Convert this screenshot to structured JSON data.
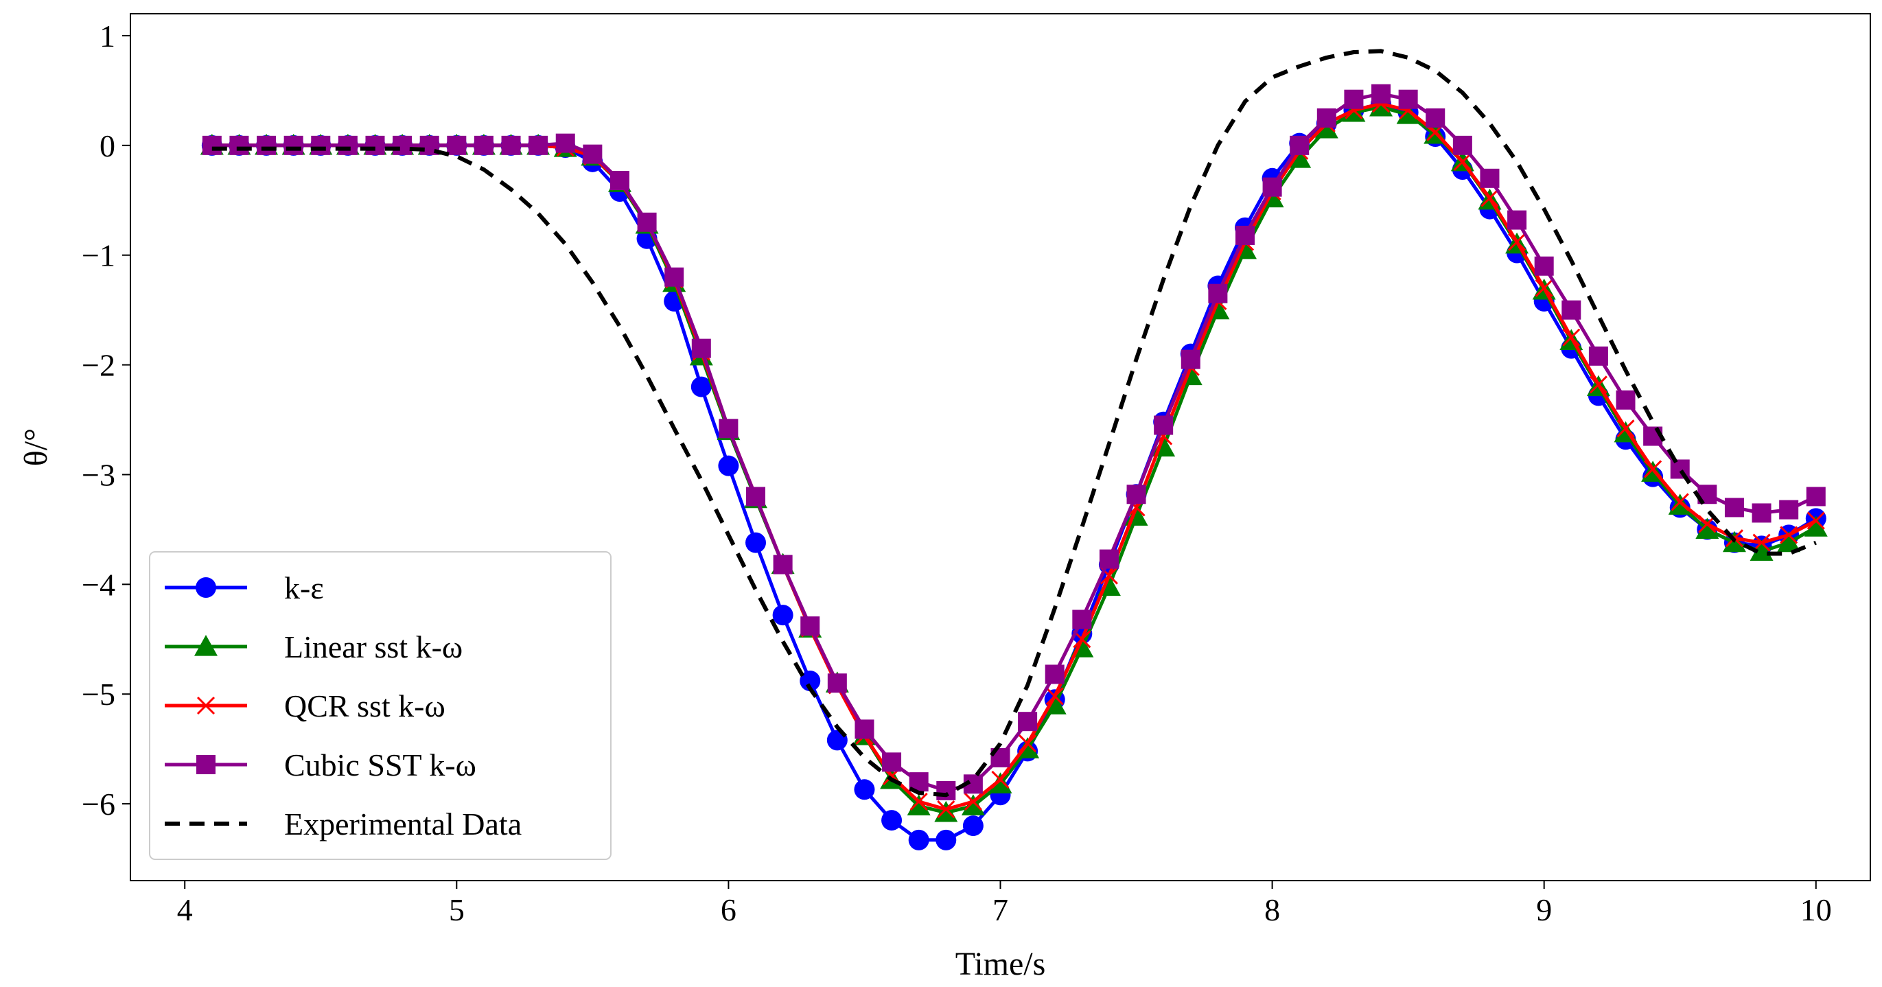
{
  "chart_data": {
    "type": "line",
    "title": "",
    "xlabel": "Time/s",
    "ylabel": "θ/°",
    "xlim": [
      3.8,
      10.2
    ],
    "ylim": [
      -6.7,
      1.2
    ],
    "xticks": [
      4,
      5,
      6,
      7,
      8,
      9,
      10
    ],
    "xtick_labels": [
      "4",
      "5",
      "6",
      "7",
      "8",
      "9",
      "10"
    ],
    "yticks": [
      1,
      0,
      -1,
      -2,
      -3,
      -4,
      -5,
      -6
    ],
    "ytick_labels": [
      "1",
      "0",
      "−1",
      "−2",
      "−3",
      "−4",
      "−5",
      "−6"
    ],
    "grid": false,
    "legend_position": "lower-left",
    "x": [
      4.1,
      4.2,
      4.3,
      4.4,
      4.5,
      4.6,
      4.7,
      4.8,
      4.9,
      5.0,
      5.1,
      5.2,
      5.3,
      5.4,
      5.5,
      5.6,
      5.7,
      5.8,
      5.9,
      6.0,
      6.1,
      6.2,
      6.3,
      6.4,
      6.5,
      6.6,
      6.7,
      6.8,
      6.9,
      7.0,
      7.1,
      7.2,
      7.3,
      7.4,
      7.5,
      7.6,
      7.7,
      7.8,
      7.9,
      8.0,
      8.1,
      8.2,
      8.3,
      8.4,
      8.5,
      8.6,
      8.7,
      8.8,
      8.9,
      9.0,
      9.1,
      9.2,
      9.3,
      9.4,
      9.5,
      9.6,
      9.7,
      9.8,
      9.9,
      10.0
    ],
    "series": [
      {
        "name": "k-ε",
        "color": "#0000ff",
        "marker": "circle",
        "dash": "solid",
        "values": [
          0,
          0,
          0,
          0,
          0,
          0,
          0,
          0,
          0,
          0,
          0,
          0,
          0,
          -0.02,
          -0.15,
          -0.42,
          -0.85,
          -1.42,
          -2.2,
          -2.92,
          -3.62,
          -4.28,
          -4.88,
          -5.42,
          -5.87,
          -6.15,
          -6.33,
          -6.33,
          -6.2,
          -5.92,
          -5.52,
          -5.05,
          -4.45,
          -3.82,
          -3.18,
          -2.52,
          -1.9,
          -1.28,
          -0.75,
          -0.3,
          0.02,
          0.2,
          0.32,
          0.38,
          0.3,
          0.08,
          -0.22,
          -0.58,
          -0.98,
          -1.42,
          -1.85,
          -2.28,
          -2.68,
          -3.02,
          -3.3,
          -3.5,
          -3.62,
          -3.65,
          -3.55,
          -3.4
        ]
      },
      {
        "name": "Linear sst k-ω",
        "color": "#008000",
        "marker": "triangle",
        "dash": "solid",
        "values": [
          0,
          0,
          0,
          0,
          0,
          0,
          0,
          0,
          0,
          0,
          0,
          0,
          0,
          -0.02,
          -0.1,
          -0.34,
          -0.72,
          -1.25,
          -1.92,
          -2.6,
          -3.22,
          -3.82,
          -4.4,
          -4.9,
          -5.38,
          -5.78,
          -6.02,
          -6.08,
          -6.02,
          -5.82,
          -5.5,
          -5.1,
          -4.58,
          -4.02,
          -3.38,
          -2.75,
          -2.1,
          -1.5,
          -0.95,
          -0.48,
          -0.12,
          0.15,
          0.3,
          0.35,
          0.28,
          0.1,
          -0.15,
          -0.5,
          -0.9,
          -1.32,
          -1.78,
          -2.2,
          -2.62,
          -2.98,
          -3.28,
          -3.5,
          -3.62,
          -3.7,
          -3.62,
          -3.48
        ]
      },
      {
        "name": "QCR sst k-ω",
        "color": "#ff0000",
        "marker": "x",
        "dash": "solid",
        "values": [
          0,
          0,
          0,
          0,
          0,
          0,
          0,
          0,
          0,
          0,
          0,
          0,
          0,
          -0.02,
          -0.1,
          -0.33,
          -0.7,
          -1.22,
          -1.88,
          -2.58,
          -3.2,
          -3.82,
          -4.4,
          -4.92,
          -5.38,
          -5.75,
          -5.98,
          -6.05,
          -5.98,
          -5.78,
          -5.45,
          -5.02,
          -4.5,
          -3.92,
          -3.3,
          -2.65,
          -2.02,
          -1.42,
          -0.88,
          -0.42,
          -0.05,
          0.2,
          0.32,
          0.38,
          0.32,
          0.12,
          -0.15,
          -0.48,
          -0.88,
          -1.3,
          -1.75,
          -2.18,
          -2.58,
          -2.95,
          -3.25,
          -3.45,
          -3.58,
          -3.62,
          -3.55,
          -3.42
        ]
      },
      {
        "name": "Cubic SST k-ω",
        "color": "#8b008b",
        "marker": "square",
        "dash": "solid",
        "values": [
          0,
          0,
          0,
          0,
          0,
          0,
          0,
          0,
          0,
          0,
          0,
          0,
          0,
          0.02,
          -0.08,
          -0.32,
          -0.7,
          -1.2,
          -1.85,
          -2.58,
          -3.2,
          -3.82,
          -4.38,
          -4.9,
          -5.32,
          -5.62,
          -5.8,
          -5.88,
          -5.82,
          -5.58,
          -5.25,
          -4.82,
          -4.32,
          -3.77,
          -3.18,
          -2.55,
          -1.95,
          -1.35,
          -0.82,
          -0.38,
          0.0,
          0.25,
          0.42,
          0.47,
          0.42,
          0.25,
          0.0,
          -0.3,
          -0.68,
          -1.1,
          -1.5,
          -1.92,
          -2.32,
          -2.65,
          -2.95,
          -3.18,
          -3.3,
          -3.35,
          -3.32,
          -3.2
        ]
      },
      {
        "name": "Experimental Data",
        "color": "#000000",
        "marker": "none",
        "dash": "dashed",
        "x": [
          4.1,
          4.3,
          4.5,
          4.7,
          4.8,
          4.9,
          5.0,
          5.1,
          5.2,
          5.3,
          5.4,
          5.5,
          5.6,
          5.7,
          5.8,
          5.9,
          6.0,
          6.1,
          6.2,
          6.3,
          6.4,
          6.5,
          6.6,
          6.7,
          6.8,
          6.9,
          7.0,
          7.1,
          7.2,
          7.3,
          7.4,
          7.5,
          7.6,
          7.7,
          7.8,
          7.9,
          8.0,
          8.1,
          8.2,
          8.3,
          8.4,
          8.5,
          8.6,
          8.7,
          8.8,
          8.9,
          9.0,
          9.1,
          9.2,
          9.3,
          9.4,
          9.5,
          9.6,
          9.7,
          9.8,
          9.9,
          10.0
        ],
        "values": [
          -0.03,
          -0.03,
          -0.03,
          -0.03,
          -0.03,
          -0.04,
          -0.1,
          -0.22,
          -0.4,
          -0.62,
          -0.9,
          -1.25,
          -1.65,
          -2.1,
          -2.58,
          -3.05,
          -3.55,
          -4.05,
          -4.52,
          -4.95,
          -5.3,
          -5.58,
          -5.78,
          -5.9,
          -5.92,
          -5.78,
          -5.45,
          -4.92,
          -4.22,
          -3.48,
          -2.72,
          -1.95,
          -1.22,
          -0.55,
          0.0,
          0.4,
          0.62,
          0.72,
          0.8,
          0.85,
          0.86,
          0.8,
          0.68,
          0.48,
          0.2,
          -0.15,
          -0.58,
          -1.05,
          -1.55,
          -2.05,
          -2.52,
          -2.95,
          -3.32,
          -3.6,
          -3.72,
          -3.72,
          -3.62
        ]
      }
    ]
  }
}
